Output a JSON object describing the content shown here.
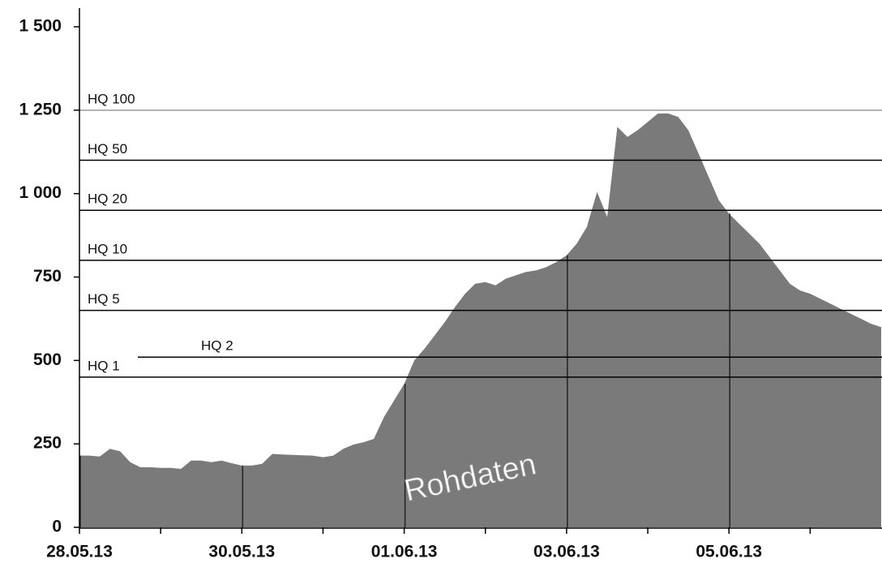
{
  "chart_data": {
    "type": "area",
    "annotation": "Rohdaten",
    "color": "#7a7a7a",
    "categories": [
      "28.05.13",
      null,
      null,
      null,
      null,
      null,
      null,
      null,
      null,
      null,
      null,
      null,
      null,
      null,
      null,
      null,
      "30.05.13",
      null,
      null,
      null,
      null,
      null,
      null,
      null,
      null,
      null,
      null,
      null,
      null,
      null,
      null,
      null,
      "01.06.13",
      null,
      null,
      null,
      null,
      null,
      null,
      null,
      null,
      null,
      null,
      null,
      null,
      null,
      null,
      null,
      "03.06.13",
      null,
      null,
      null,
      null,
      null,
      null,
      null,
      null,
      null,
      null,
      null,
      null,
      null,
      null,
      null,
      "05.06.13",
      null,
      null,
      null,
      null,
      null,
      null,
      null,
      null,
      null,
      null,
      null,
      null,
      null,
      null,
      null
    ],
    "values": [
      215,
      215,
      212,
      235,
      228,
      195,
      180,
      180,
      178,
      178,
      175,
      200,
      200,
      195,
      200,
      192,
      185,
      185,
      190,
      220,
      218,
      217,
      216,
      215,
      210,
      215,
      235,
      248,
      255,
      265,
      330,
      380,
      430,
      500,
      535,
      575,
      615,
      660,
      700,
      730,
      735,
      725,
      745,
      755,
      765,
      770,
      780,
      795,
      815,
      850,
      900,
      1005,
      930,
      1200,
      1170,
      1190,
      1215,
      1240,
      1240,
      1230,
      1190,
      1120,
      1050,
      980,
      940,
      910,
      880,
      850,
      810,
      770,
      730,
      710,
      700,
      685,
      670,
      655,
      640,
      625,
      610,
      600
    ],
    "ylim": [
      0,
      1500
    ],
    "yticks": [
      0,
      250,
      500,
      750,
      {
        "value": 1000,
        "label": "1 000"
      },
      {
        "value": 1250,
        "label": "1 250"
      },
      {
        "value": 1500,
        "label": "1 500"
      }
    ],
    "reference_lines": [
      {
        "label": "HQ 100",
        "value": 1250,
        "color": "#9a9a9a"
      },
      {
        "label": "HQ 50",
        "value": 1100,
        "color": "#000000"
      },
      {
        "label": "HQ 20",
        "value": 950,
        "color": "#000000"
      },
      {
        "label": "HQ 10",
        "value": 800,
        "color": "#000000"
      },
      {
        "label": "HQ 5",
        "value": 650,
        "color": "#000000"
      },
      {
        "label": "HQ 2",
        "value": 510,
        "color": "#000000"
      },
      {
        "label": "HQ 1",
        "value": 450,
        "color": "#000000"
      }
    ]
  }
}
